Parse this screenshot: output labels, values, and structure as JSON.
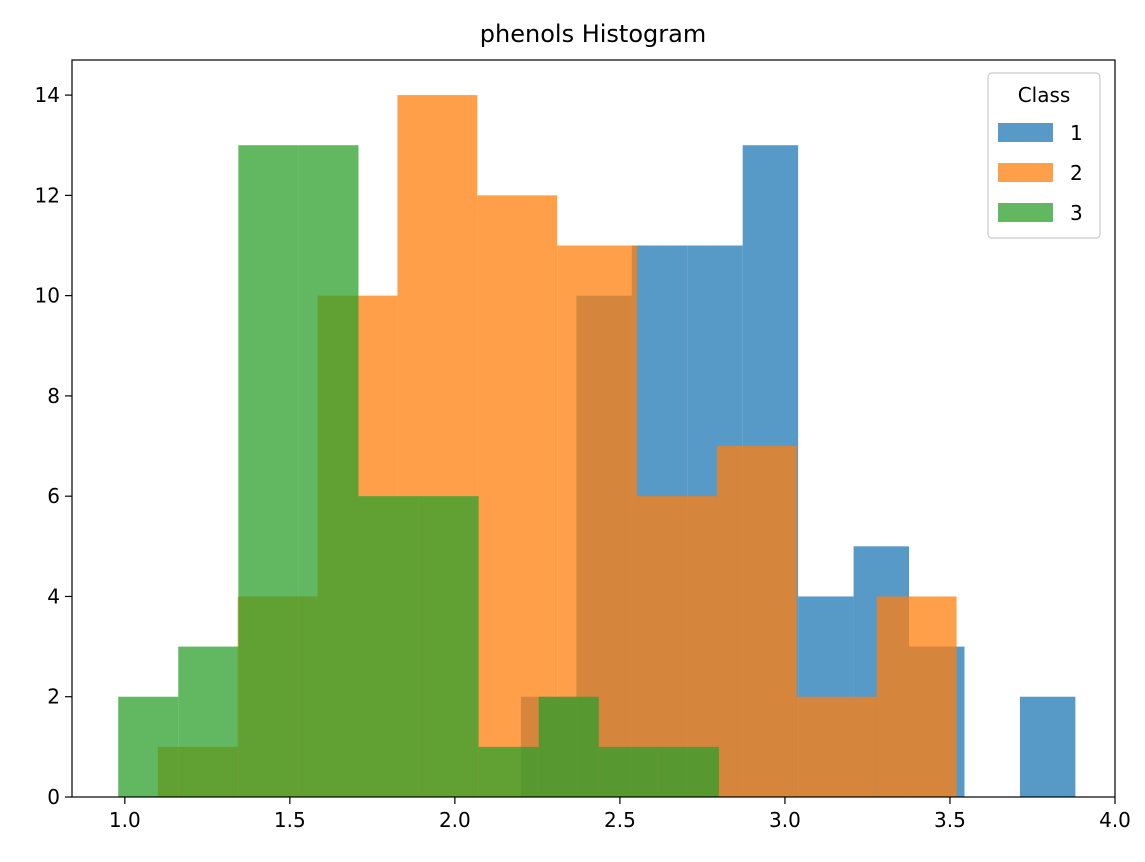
{
  "chart_data": {
    "type": "bar",
    "title": "phenols Histogram",
    "xlabel": "",
    "ylabel": "",
    "xlim": [
      0.84,
      4.0
    ],
    "ylim": [
      0,
      14.7
    ],
    "x_ticks": [
      1.0,
      1.5,
      2.0,
      2.5,
      3.0,
      3.5,
      4.0
    ],
    "x_tick_labels": [
      "1.0",
      "1.5",
      "2.0",
      "2.5",
      "3.0",
      "3.5",
      "4.0"
    ],
    "y_ticks": [
      0,
      2,
      4,
      6,
      8,
      10,
      12,
      14
    ],
    "y_tick_labels": [
      "0",
      "2",
      "4",
      "6",
      "8",
      "10",
      "12",
      "14"
    ],
    "grid": false,
    "legend": {
      "title": "Class",
      "placement": "top-right"
    },
    "series": [
      {
        "name": "1",
        "color": "#1f77b4",
        "bin_edges": [
          2.2,
          2.368,
          2.536,
          2.704,
          2.872,
          3.04,
          3.208,
          3.376,
          3.544,
          3.712,
          3.88
        ],
        "counts": [
          2,
          10,
          11,
          11,
          13,
          4,
          5,
          3,
          0,
          2
        ]
      },
      {
        "name": "2",
        "color": "#ff7f0e",
        "bin_edges": [
          1.1,
          1.342,
          1.584,
          1.826,
          2.068,
          2.31,
          2.552,
          2.794,
          3.036,
          3.278,
          3.52
        ],
        "counts": [
          1,
          4,
          10,
          14,
          12,
          11,
          6,
          7,
          2,
          4
        ]
      },
      {
        "name": "3",
        "color": "#2ca02c",
        "bin_edges": [
          0.98,
          1.162,
          1.344,
          1.526,
          1.708,
          1.89,
          2.072,
          2.254,
          2.436,
          2.618,
          2.8
        ],
        "counts": [
          2,
          3,
          13,
          13,
          6,
          6,
          1,
          2,
          1,
          1
        ]
      }
    ]
  }
}
